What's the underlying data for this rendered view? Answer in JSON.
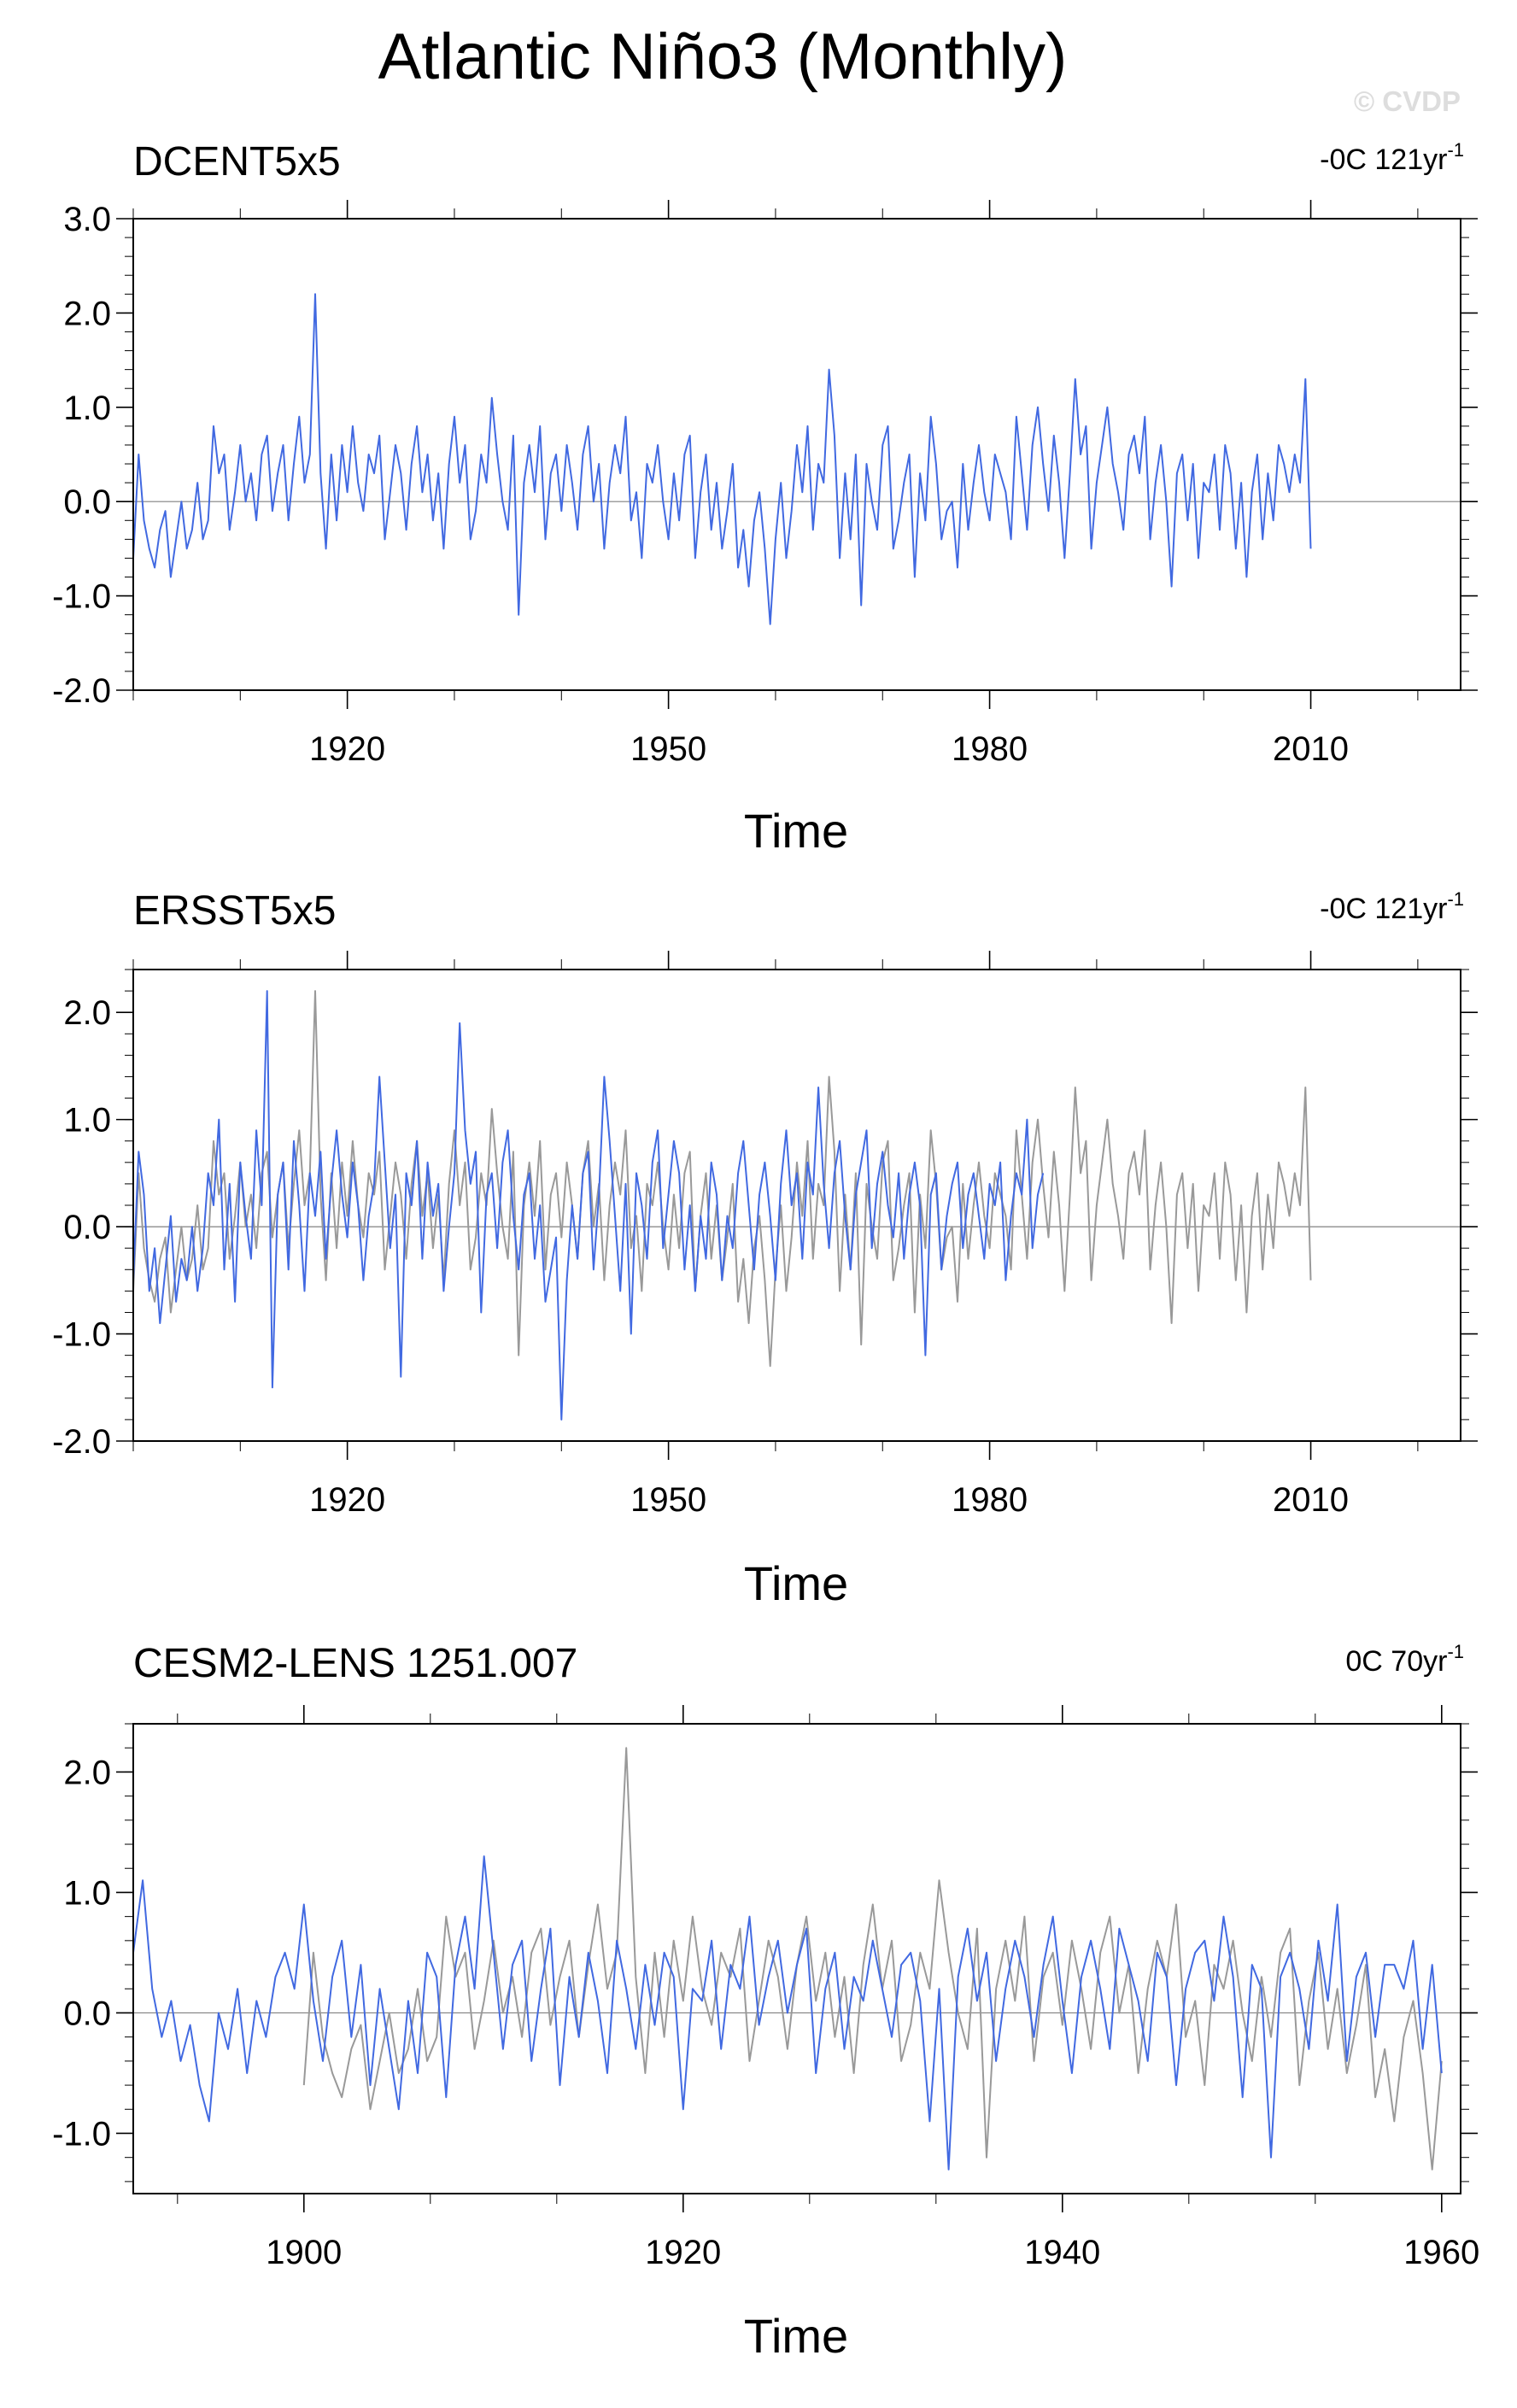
{
  "figure": {
    "title": "Atlantic Niño3 (Monthly)",
    "watermark": "© CVDP",
    "colors": {
      "primary": "#4169e1",
      "comparison": "#999999",
      "zero_line": "#808080"
    }
  },
  "chart_data": [
    {
      "type": "line",
      "title": "DCENT5x5",
      "trend_prefix": "-0C 121yr",
      "trend_sup": "-1",
      "xlabel": "Time",
      "ylabel": "",
      "xlim": [
        1900,
        2024
      ],
      "ylim": [
        -2.0,
        3.0
      ],
      "xticks": [
        1920,
        1950,
        1980,
        2010
      ],
      "yticks": [
        -2.0,
        -1.0,
        0.0,
        1.0,
        2.0,
        3.0
      ],
      "ytick_labels": [
        "-2.0",
        "-1.0",
        "0.0",
        "1.0",
        "2.0",
        "3.0"
      ],
      "grid": false,
      "series": [
        {
          "role": "primary",
          "step_years": 0.5,
          "x_start": 1900.0,
          "values": [
            -0.6,
            0.5,
            -0.2,
            -0.5,
            -0.7,
            -0.3,
            -0.1,
            -0.8,
            -0.4,
            0.0,
            -0.5,
            -0.3,
            0.2,
            -0.4,
            -0.2,
            0.8,
            0.3,
            0.5,
            -0.3,
            0.1,
            0.6,
            0.0,
            0.3,
            -0.2,
            0.5,
            0.7,
            -0.1,
            0.3,
            0.6,
            -0.2,
            0.4,
            0.9,
            0.2,
            0.5,
            2.2,
            0.3,
            -0.5,
            0.5,
            -0.2,
            0.6,
            0.1,
            0.8,
            0.2,
            -0.1,
            0.5,
            0.3,
            0.7,
            -0.4,
            0.1,
            0.6,
            0.3,
            -0.3,
            0.4,
            0.8,
            0.1,
            0.5,
            -0.2,
            0.3,
            -0.5,
            0.4,
            0.9,
            0.2,
            0.6,
            -0.4,
            -0.1,
            0.5,
            0.2,
            1.1,
            0.5,
            0.0,
            -0.3,
            0.7,
            -1.2,
            0.2,
            0.6,
            0.1,
            0.8,
            -0.4,
            0.3,
            0.5,
            -0.1,
            0.6,
            0.2,
            -0.3,
            0.5,
            0.8,
            0.0,
            0.4,
            -0.5,
            0.2,
            0.6,
            0.3,
            0.9,
            -0.2,
            0.1,
            -0.6,
            0.4,
            0.2,
            0.6,
            0.0,
            -0.4,
            0.3,
            -0.2,
            0.5,
            0.7,
            -0.6,
            0.1,
            0.5,
            -0.3,
            0.2,
            -0.5,
            -0.1,
            0.4,
            -0.7,
            -0.3,
            -0.9,
            -0.2,
            0.1,
            -0.5,
            -1.3,
            -0.4,
            0.2,
            -0.6,
            -0.1,
            0.6,
            0.1,
            0.8,
            -0.3,
            0.4,
            0.2,
            1.4,
            0.7,
            -0.6,
            0.3,
            -0.4,
            0.5,
            -1.1,
            0.4,
            0.0,
            -0.3,
            0.6,
            0.8,
            -0.5,
            -0.2,
            0.2,
            0.5,
            -0.8,
            0.3,
            -0.2,
            0.9,
            0.4,
            -0.4,
            -0.1,
            0.0,
            -0.7,
            0.4,
            -0.3,
            0.2,
            0.6,
            0.1,
            -0.2,
            0.5,
            0.3,
            0.1,
            -0.4,
            0.9,
            0.3,
            -0.3,
            0.6,
            1.0,
            0.4,
            -0.1,
            0.7,
            0.2,
            -0.6,
            0.3,
            1.3,
            0.5,
            0.8,
            -0.5,
            0.2,
            0.6,
            1.0,
            0.4,
            0.1,
            -0.3,
            0.5,
            0.7,
            0.3,
            0.9,
            -0.4,
            0.2,
            0.6,
            0.0,
            -0.9,
            0.3,
            0.5,
            -0.2,
            0.4,
            -0.6,
            0.2,
            0.1,
            0.5,
            -0.3,
            0.6,
            0.3,
            -0.5,
            0.2,
            -0.8,
            0.1,
            0.5,
            -0.4,
            0.3,
            -0.2,
            0.6,
            0.4,
            0.1,
            0.5,
            0.2,
            1.3,
            -0.5
          ]
        }
      ]
    },
    {
      "type": "line",
      "title": "ERSST5x5",
      "trend_prefix": "-0C 121yr",
      "trend_sup": "-1",
      "xlabel": "Time",
      "ylabel": "",
      "xlim": [
        1900,
        2024
      ],
      "ylim": [
        -2.0,
        2.4
      ],
      "xticks": [
        1920,
        1950,
        1980,
        2010
      ],
      "yticks": [
        -2.0,
        -1.0,
        0.0,
        1.0,
        2.0
      ],
      "ytick_labels": [
        "-2.0",
        "-1.0",
        "0.0",
        "1.0",
        "2.0"
      ],
      "grid": false,
      "series": [
        {
          "role": "comparison",
          "step_years": 0.5,
          "x_start": 1900.0,
          "values": [
            -0.6,
            0.5,
            -0.2,
            -0.5,
            -0.7,
            -0.3,
            -0.1,
            -0.8,
            -0.4,
            0.0,
            -0.5,
            -0.3,
            0.2,
            -0.4,
            -0.2,
            0.8,
            0.3,
            0.5,
            -0.3,
            0.1,
            0.6,
            0.0,
            0.3,
            -0.2,
            0.5,
            0.7,
            -0.1,
            0.3,
            0.6,
            -0.2,
            0.4,
            0.9,
            0.2,
            0.5,
            2.2,
            0.3,
            -0.5,
            0.5,
            -0.2,
            0.6,
            0.1,
            0.8,
            0.2,
            -0.1,
            0.5,
            0.3,
            0.7,
            -0.4,
            0.1,
            0.6,
            0.3,
            -0.3,
            0.4,
            0.8,
            0.1,
            0.5,
            -0.2,
            0.3,
            -0.5,
            0.4,
            0.9,
            0.2,
            0.6,
            -0.4,
            -0.1,
            0.5,
            0.2,
            1.1,
            0.5,
            0.0,
            -0.3,
            0.7,
            -1.2,
            0.2,
            0.6,
            0.1,
            0.8,
            -0.4,
            0.3,
            0.5,
            -0.1,
            0.6,
            0.2,
            -0.3,
            0.5,
            0.8,
            0.0,
            0.4,
            -0.5,
            0.2,
            0.6,
            0.3,
            0.9,
            -0.2,
            0.1,
            -0.6,
            0.4,
            0.2,
            0.6,
            0.0,
            -0.4,
            0.3,
            -0.2,
            0.5,
            0.7,
            -0.6,
            0.1,
            0.5,
            -0.3,
            0.2,
            -0.5,
            -0.1,
            0.4,
            -0.7,
            -0.3,
            -0.9,
            -0.2,
            0.1,
            -0.5,
            -1.3,
            -0.4,
            0.2,
            -0.6,
            -0.1,
            0.6,
            0.1,
            0.8,
            -0.3,
            0.4,
            0.2,
            1.4,
            0.7,
            -0.6,
            0.3,
            -0.4,
            0.5,
            -1.1,
            0.4,
            0.0,
            -0.3,
            0.6,
            0.8,
            -0.5,
            -0.2,
            0.2,
            0.5,
            -0.8,
            0.3,
            -0.2,
            0.9,
            0.4,
            -0.4,
            -0.1,
            0.0,
            -0.7,
            0.4,
            -0.3,
            0.2,
            0.6,
            0.1,
            -0.2,
            0.5,
            0.3,
            0.1,
            -0.4,
            0.9,
            0.3,
            -0.3,
            0.6,
            1.0,
            0.4,
            -0.1,
            0.7,
            0.2,
            -0.6,
            0.3,
            1.3,
            0.5,
            0.8,
            -0.5,
            0.2,
            0.6,
            1.0,
            0.4,
            0.1,
            -0.3,
            0.5,
            0.7,
            0.3,
            0.9,
            -0.4,
            0.2,
            0.6,
            0.0,
            -0.9,
            0.3,
            0.5,
            -0.2,
            0.4,
            -0.6,
            0.2,
            0.1,
            0.5,
            -0.3,
            0.6,
            0.3,
            -0.5,
            0.2,
            -0.8,
            0.1,
            0.5,
            -0.4,
            0.3,
            -0.2,
            0.6,
            0.4,
            0.1,
            0.5,
            0.2,
            1.3,
            -0.5
          ]
        },
        {
          "role": "primary",
          "step_years": 0.5,
          "x_start": 1900.0,
          "values": [
            -0.5,
            0.7,
            0.3,
            -0.6,
            -0.2,
            -0.9,
            -0.4,
            0.1,
            -0.7,
            -0.3,
            -0.5,
            0.0,
            -0.6,
            -0.2,
            0.5,
            0.2,
            1.0,
            -0.4,
            0.4,
            -0.7,
            0.6,
            0.1,
            -0.3,
            0.9,
            0.2,
            2.2,
            -1.5,
            0.3,
            0.6,
            -0.4,
            0.8,
            0.2,
            -0.6,
            0.5,
            0.1,
            0.7,
            -0.3,
            0.4,
            0.9,
            0.3,
            -0.1,
            0.6,
            0.2,
            -0.5,
            0.1,
            0.4,
            1.4,
            0.6,
            -0.2,
            0.3,
            -1.4,
            0.5,
            0.2,
            0.8,
            -0.3,
            0.6,
            0.1,
            0.4,
            -0.6,
            0.0,
            0.5,
            1.9,
            0.9,
            0.4,
            0.7,
            -0.8,
            0.3,
            0.5,
            -0.2,
            0.6,
            0.9,
            0.1,
            -0.4,
            0.3,
            0.5,
            -0.3,
            0.2,
            -0.7,
            -0.4,
            -0.1,
            -1.8,
            -0.5,
            0.2,
            -0.3,
            0.5,
            0.7,
            -0.4,
            0.3,
            1.4,
            0.8,
            0.1,
            -0.6,
            0.4,
            -1.0,
            0.5,
            0.2,
            -0.3,
            0.6,
            0.9,
            -0.2,
            0.3,
            0.8,
            0.5,
            -0.4,
            0.2,
            -0.6,
            0.1,
            -0.3,
            0.6,
            0.3,
            -0.5,
            0.1,
            -0.2,
            0.5,
            0.8,
            0.2,
            -0.4,
            0.3,
            0.6,
            0.1,
            -0.5,
            0.4,
            0.9,
            0.2,
            0.5,
            -0.3,
            0.6,
            0.3,
            1.3,
            0.4,
            -0.2,
            0.5,
            0.8,
            0.1,
            -0.4,
            0.3,
            0.6,
            0.9,
            -0.2,
            0.4,
            0.7,
            0.2,
            -0.1,
            0.5,
            -0.3,
            0.3,
            0.6,
            0.2,
            -1.2,
            0.3,
            0.5,
            -0.4,
            0.1,
            0.4,
            0.6,
            -0.2,
            0.3,
            0.5,
            0.1,
            -0.3,
            0.4,
            0.2,
            0.6,
            -0.5,
            0.1,
            0.5,
            0.3,
            1.0,
            -0.2,
            0.3,
            0.5
          ]
        }
      ]
    },
    {
      "type": "line",
      "title": "CESM2-LENS 1251.007",
      "trend_prefix": "0C 70yr",
      "trend_sup": "-1",
      "xlabel": "Time",
      "ylabel": "",
      "xlim": [
        1891,
        1961
      ],
      "ylim": [
        -1.5,
        2.4
      ],
      "xticks": [
        1900,
        1920,
        1940,
        1960
      ],
      "yticks": [
        -1.0,
        0.0,
        1.0,
        2.0
      ],
      "ytick_labels": [
        "-1.0",
        "0.0",
        "1.0",
        "2.0"
      ],
      "grid": false,
      "series": [
        {
          "role": "comparison",
          "step_years": 0.5,
          "x_start": 1900.0,
          "values": [
            -0.6,
            0.5,
            -0.2,
            -0.5,
            -0.7,
            -0.3,
            -0.1,
            -0.8,
            -0.4,
            0.0,
            -0.5,
            -0.3,
            0.2,
            -0.4,
            -0.2,
            0.8,
            0.3,
            0.5,
            -0.3,
            0.1,
            0.6,
            0.0,
            0.3,
            -0.2,
            0.5,
            0.7,
            -0.1,
            0.3,
            0.6,
            -0.2,
            0.4,
            0.9,
            0.2,
            0.5,
            2.2,
            0.3,
            -0.5,
            0.5,
            -0.2,
            0.6,
            0.1,
            0.8,
            0.2,
            -0.1,
            0.5,
            0.3,
            0.7,
            -0.4,
            0.1,
            0.6,
            0.3,
            -0.3,
            0.4,
            0.8,
            0.1,
            0.5,
            -0.2,
            0.3,
            -0.5,
            0.4,
            0.9,
            0.2,
            0.6,
            -0.4,
            -0.1,
            0.5,
            0.2,
            1.1,
            0.5,
            0.0,
            -0.3,
            0.7,
            -1.2,
            0.2,
            0.6,
            0.1,
            0.8,
            -0.4,
            0.3,
            0.5,
            -0.1,
            0.6,
            0.2,
            -0.3,
            0.5,
            0.8,
            0.0,
            0.4,
            -0.5,
            0.2,
            0.6,
            0.3,
            0.9,
            -0.2,
            0.1,
            -0.6,
            0.4,
            0.2,
            0.6,
            0.0,
            -0.4,
            0.3,
            -0.2,
            0.5,
            0.7,
            -0.6,
            0.1,
            0.5,
            -0.3,
            0.2,
            -0.5,
            -0.1,
            0.4,
            -0.7,
            -0.3,
            -0.9,
            -0.2,
            0.1,
            -0.5,
            -1.3,
            -0.4
          ]
        },
        {
          "role": "primary",
          "step_years": 0.5,
          "x_start": 1891.0,
          "values": [
            0.5,
            1.1,
            0.2,
            -0.2,
            0.1,
            -0.4,
            -0.1,
            -0.6,
            -0.9,
            0.0,
            -0.3,
            0.2,
            -0.5,
            0.1,
            -0.2,
            0.3,
            0.5,
            0.2,
            0.9,
            0.1,
            -0.4,
            0.3,
            0.6,
            -0.2,
            0.4,
            -0.6,
            0.2,
            -0.3,
            -0.8,
            0.1,
            -0.5,
            0.5,
            0.3,
            -0.7,
            0.4,
            0.8,
            0.2,
            1.3,
            0.5,
            -0.3,
            0.4,
            0.6,
            -0.4,
            0.2,
            0.7,
            -0.6,
            0.3,
            -0.2,
            0.5,
            0.1,
            -0.5,
            0.6,
            0.2,
            -0.3,
            0.4,
            -0.1,
            0.5,
            0.3,
            -0.8,
            0.2,
            0.1,
            0.6,
            -0.3,
            0.4,
            0.2,
            0.8,
            -0.1,
            0.3,
            0.6,
            0.0,
            0.4,
            0.7,
            -0.5,
            0.2,
            0.5,
            -0.3,
            0.3,
            0.1,
            0.6,
            0.2,
            -0.2,
            0.4,
            0.5,
            0.1,
            -0.9,
            0.2,
            -1.3,
            0.3,
            0.7,
            0.1,
            0.5,
            -0.4,
            0.2,
            0.6,
            0.3,
            -0.2,
            0.4,
            0.8,
            0.1,
            -0.5,
            0.3,
            0.6,
            0.2,
            -0.3,
            0.7,
            0.4,
            0.1,
            -0.4,
            0.5,
            0.3,
            -0.6,
            0.2,
            0.5,
            0.6,
            0.1,
            0.8,
            0.3,
            -0.7,
            0.4,
            0.2,
            -1.2,
            0.3,
            0.5,
            0.2,
            -0.3,
            0.6,
            0.1,
            0.9,
            -0.4,
            0.3,
            0.5,
            -0.2,
            0.4,
            0.4,
            0.2,
            0.6,
            -0.3,
            0.4,
            -0.5
          ]
        }
      ]
    }
  ]
}
